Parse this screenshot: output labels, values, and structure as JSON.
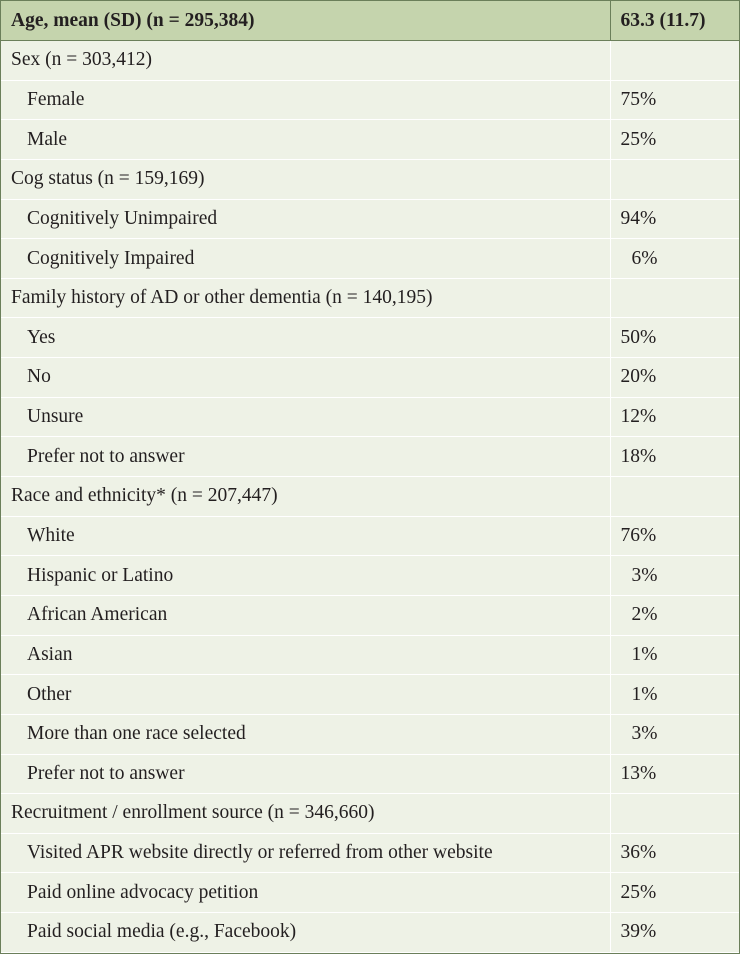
{
  "header": {
    "label": "Age, mean (SD) (n = 295,384)",
    "value": "63.3 (11.7)"
  },
  "rows": [
    {
      "label": "Sex (n = 303,412)",
      "value": "",
      "type": "section"
    },
    {
      "label": "Female",
      "value": "75%",
      "type": "item"
    },
    {
      "label": "Male",
      "value": "25%",
      "type": "item"
    },
    {
      "label": "Cog status (n = 159,169)",
      "value": "",
      "type": "section"
    },
    {
      "label": "Cognitively Unimpaired",
      "value": "94%",
      "type": "item"
    },
    {
      "label": "Cognitively Impaired",
      "value": "6%",
      "type": "item"
    },
    {
      "label": "Family history of AD or other dementia (n = 140,195)",
      "value": "",
      "type": "section"
    },
    {
      "label": "Yes",
      "value": "50%",
      "type": "item"
    },
    {
      "label": "No",
      "value": "20%",
      "type": "item"
    },
    {
      "label": "Unsure",
      "value": "12%",
      "type": "item"
    },
    {
      "label": "Prefer not to answer",
      "value": "18%",
      "type": "item"
    },
    {
      "label": "Race and ethnicity* (n = 207,447)",
      "value": "",
      "type": "section"
    },
    {
      "label": "White",
      "value": "76%",
      "type": "item"
    },
    {
      "label": "Hispanic or Latino",
      "value": "3%",
      "type": "item"
    },
    {
      "label": "African American",
      "value": "2%",
      "type": "item"
    },
    {
      "label": "Asian",
      "value": "1%",
      "type": "item"
    },
    {
      "label": "Other",
      "value": "1%",
      "type": "item"
    },
    {
      "label": "More than one race selected",
      "value": "3%",
      "type": "item"
    },
    {
      "label": "Prefer not to answer",
      "value": "13%",
      "type": "item"
    },
    {
      "label": "Recruitment / enrollment source (n = 346,660)",
      "value": "",
      "type": "section"
    },
    {
      "label": "Visited APR website directly or referred from other website",
      "value": "36%",
      "type": "item"
    },
    {
      "label": "Paid online advocacy petition",
      "value": "25%",
      "type": "item"
    },
    {
      "label": "Paid social media (e.g., Facebook)",
      "value": "39%",
      "type": "item"
    }
  ],
  "colors": {
    "header_bg": "#c5d4ad",
    "row_bg": "#eef2e6",
    "border": "#6b7f5a",
    "divider": "#ffffff"
  }
}
